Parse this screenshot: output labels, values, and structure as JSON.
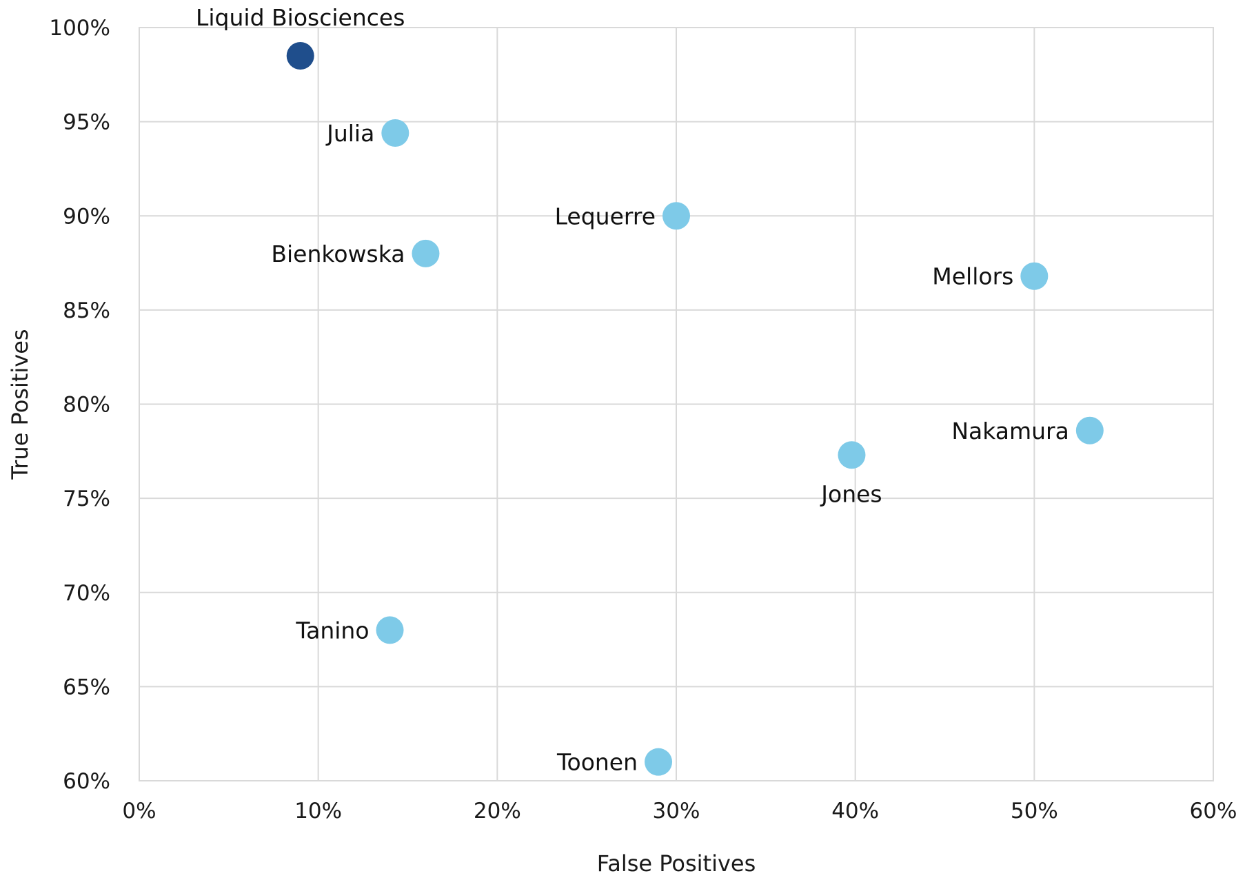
{
  "chart_data": {
    "type": "scatter",
    "title": "",
    "xlabel": "False Positives",
    "ylabel": "True Positives",
    "xlim": [
      0,
      60
    ],
    "ylim": [
      60,
      100
    ],
    "xticks": [
      0,
      10,
      20,
      30,
      40,
      50,
      60
    ],
    "yticks": [
      60,
      65,
      70,
      75,
      80,
      85,
      90,
      95,
      100
    ],
    "xtick_labels": [
      "0%",
      "10%",
      "20%",
      "30%",
      "40%",
      "50%",
      "60%"
    ],
    "ytick_labels": [
      "60%",
      "65%",
      "70%",
      "75%",
      "80%",
      "85%",
      "90%",
      "95%",
      "100%"
    ],
    "grid": true,
    "colors": {
      "highlight": "#1f4e8c",
      "default": "#7ecae8"
    },
    "points": [
      {
        "label": "Liquid Biosciences",
        "x": 9,
        "y": 98.5,
        "highlight": true,
        "label_pos": "above"
      },
      {
        "label": "Julia",
        "x": 14.3,
        "y": 94.4,
        "highlight": false,
        "label_pos": "left"
      },
      {
        "label": "Lequerre",
        "x": 30,
        "y": 90,
        "highlight": false,
        "label_pos": "left"
      },
      {
        "label": "Bienkowska",
        "x": 16,
        "y": 88,
        "highlight": false,
        "label_pos": "left"
      },
      {
        "label": "Mellors",
        "x": 50,
        "y": 86.8,
        "highlight": false,
        "label_pos": "left"
      },
      {
        "label": "Nakamura",
        "x": 53.1,
        "y": 78.6,
        "highlight": false,
        "label_pos": "left"
      },
      {
        "label": "Jones",
        "x": 39.8,
        "y": 77.3,
        "highlight": false,
        "label_pos": "below"
      },
      {
        "label": "Tanino",
        "x": 14,
        "y": 68,
        "highlight": false,
        "label_pos": "left"
      },
      {
        "label": "Toonen",
        "x": 29,
        "y": 61,
        "highlight": false,
        "label_pos": "left"
      }
    ]
  }
}
